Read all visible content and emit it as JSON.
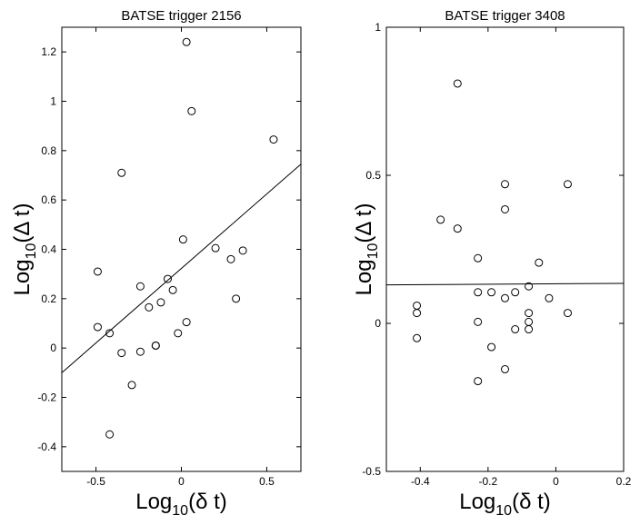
{
  "chart_data": [
    {
      "type": "scatter",
      "title": "BATSE trigger 2156",
      "xlabel": {
        "prefix": "Log",
        "sub": "10",
        "suffix": "(δ t)"
      },
      "ylabel": {
        "prefix": "Log",
        "sub": "10",
        "suffix": "(Δ t)"
      },
      "xlim": [
        -0.7,
        0.7
      ],
      "ylim": [
        -0.5,
        1.3
      ],
      "xticks": [
        -0.5,
        0,
        0.5
      ],
      "xtick_labels": [
        "-0.5",
        "0",
        "0.5"
      ],
      "yticks": [
        -0.4,
        -0.2,
        0,
        0.2,
        0.4,
        0.6,
        0.8,
        1,
        1.2
      ],
      "ytick_labels": [
        "-0.4",
        "-0.2",
        "0",
        "0.2",
        "0.4",
        "0.6",
        "0.8",
        "1",
        "1.2"
      ],
      "grid": false,
      "points": [
        {
          "x": -0.49,
          "y": 0.31
        },
        {
          "x": -0.49,
          "y": 0.085
        },
        {
          "x": -0.42,
          "y": 0.06
        },
        {
          "x": -0.42,
          "y": -0.35
        },
        {
          "x": -0.35,
          "y": 0.71
        },
        {
          "x": -0.35,
          "y": -0.02
        },
        {
          "x": -0.29,
          "y": -0.15
        },
        {
          "x": -0.24,
          "y": 0.25
        },
        {
          "x": -0.24,
          "y": -0.015
        },
        {
          "x": -0.19,
          "y": 0.165
        },
        {
          "x": -0.15,
          "y": 0.01
        },
        {
          "x": -0.15,
          "y": 0.01
        },
        {
          "x": -0.12,
          "y": 0.185
        },
        {
          "x": -0.08,
          "y": 0.28
        },
        {
          "x": -0.05,
          "y": 0.235
        },
        {
          "x": -0.02,
          "y": 0.06
        },
        {
          "x": 0.01,
          "y": 0.44
        },
        {
          "x": 0.03,
          "y": 1.24
        },
        {
          "x": 0.03,
          "y": 0.105
        },
        {
          "x": 0.06,
          "y": 0.96
        },
        {
          "x": 0.2,
          "y": 0.405
        },
        {
          "x": 0.29,
          "y": 0.36
        },
        {
          "x": 0.32,
          "y": 0.2
        },
        {
          "x": 0.36,
          "y": 0.395
        },
        {
          "x": 0.54,
          "y": 0.845
        }
      ],
      "fit_line": {
        "x": [
          -0.7,
          0.7
        ],
        "y": [
          -0.1,
          0.745
        ]
      }
    },
    {
      "type": "scatter",
      "title": "BATSE trigger 3408",
      "xlabel": {
        "prefix": "Log",
        "sub": "10",
        "suffix": "(δ t)"
      },
      "ylabel": {
        "prefix": "Log",
        "sub": "10",
        "suffix": "(Δ t)"
      },
      "xlim": [
        -0.5,
        0.2
      ],
      "ylim": [
        -0.5,
        1
      ],
      "xticks": [
        -0.4,
        -0.2,
        0,
        0.2
      ],
      "xtick_labels": [
        "-0.4",
        "-0.2",
        "0",
        "0.2"
      ],
      "yticks": [
        -0.5,
        0,
        0.5,
        1
      ],
      "ytick_labels": [
        "-0.5",
        "0",
        "0.5",
        "1"
      ],
      "grid": false,
      "points": [
        {
          "x": -0.41,
          "y": 0.06
        },
        {
          "x": -0.41,
          "y": 0.035
        },
        {
          "x": -0.41,
          "y": -0.05
        },
        {
          "x": -0.34,
          "y": 0.35
        },
        {
          "x": -0.29,
          "y": 0.81
        },
        {
          "x": -0.29,
          "y": 0.32
        },
        {
          "x": -0.23,
          "y": 0.22
        },
        {
          "x": -0.23,
          "y": 0.105
        },
        {
          "x": -0.23,
          "y": 0.005
        },
        {
          "x": -0.23,
          "y": -0.195
        },
        {
          "x": -0.19,
          "y": 0.105
        },
        {
          "x": -0.19,
          "y": -0.08
        },
        {
          "x": -0.15,
          "y": 0.47
        },
        {
          "x": -0.15,
          "y": 0.385
        },
        {
          "x": -0.15,
          "y": 0.085
        },
        {
          "x": -0.15,
          "y": -0.155
        },
        {
          "x": -0.12,
          "y": 0.105
        },
        {
          "x": -0.12,
          "y": -0.02
        },
        {
          "x": -0.08,
          "y": 0.125
        },
        {
          "x": -0.08,
          "y": 0.035
        },
        {
          "x": -0.08,
          "y": 0.005
        },
        {
          "x": -0.08,
          "y": -0.02
        },
        {
          "x": -0.05,
          "y": 0.205
        },
        {
          "x": -0.02,
          "y": 0.085
        },
        {
          "x": 0.035,
          "y": 0.47
        },
        {
          "x": 0.035,
          "y": 0.035
        }
      ],
      "fit_line": {
        "x": [
          -0.5,
          0.2
        ],
        "y": [
          0.13,
          0.135
        ]
      }
    }
  ]
}
